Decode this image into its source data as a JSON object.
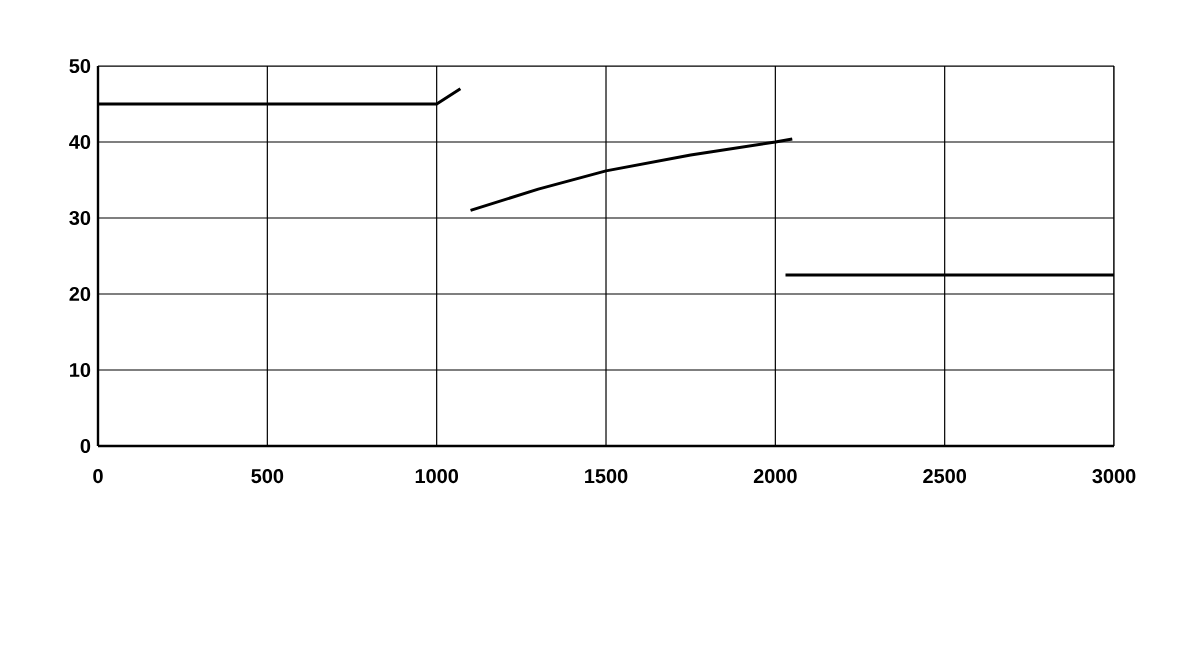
{
  "chart_data": {
    "type": "line",
    "series": [
      {
        "color": "#000000",
        "x": [
          0,
          1000,
          1070
        ],
        "values": [
          45,
          45,
          47
        ]
      },
      {
        "color": "#000000",
        "x": [
          1100,
          1300,
          1500,
          1750,
          2000,
          2050
        ],
        "values": [
          31,
          33.8,
          36.2,
          38.3,
          40,
          40.4
        ]
      },
      {
        "color": "#000000",
        "x": [
          2030,
          3000
        ],
        "values": [
          22.5,
          22.5
        ]
      }
    ],
    "xlim": [
      0,
      3000
    ],
    "ylim": [
      0,
      50
    ],
    "xticks": [
      0,
      500,
      1000,
      1500,
      2000,
      2500,
      3000
    ],
    "yticks": [
      0,
      10,
      20,
      30,
      40,
      50
    ],
    "grid": true,
    "marker": "none",
    "line_style": "solid"
  }
}
